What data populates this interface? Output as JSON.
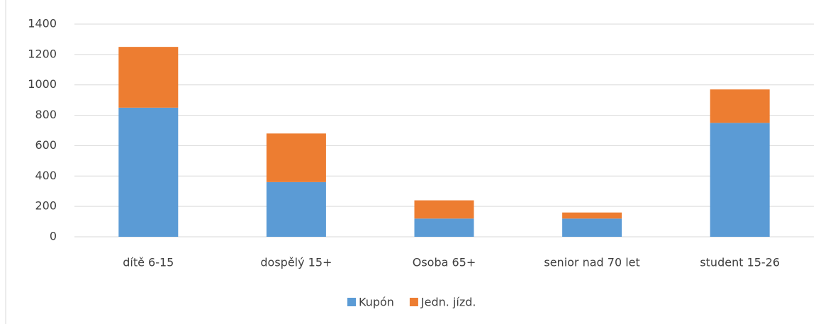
{
  "chart_data": {
    "type": "stacked_bar",
    "categories": [
      "dítě 6-15",
      "dospělý 15+",
      "Osoba 65+",
      "senior nad 70 let",
      "student 15-26"
    ],
    "series": [
      {
        "name": "Kupón",
        "color": "#5b9bd5",
        "values": [
          850,
          360,
          120,
          120,
          750
        ]
      },
      {
        "name": "Jedn. jízd.",
        "color": "#ed7d31",
        "values": [
          400,
          320,
          120,
          40,
          220
        ]
      }
    ],
    "ylim": [
      0,
      1400
    ],
    "yticks": [
      0,
      200,
      400,
      600,
      800,
      1000,
      1200,
      1400
    ],
    "grid": true,
    "legend": "bottom"
  }
}
